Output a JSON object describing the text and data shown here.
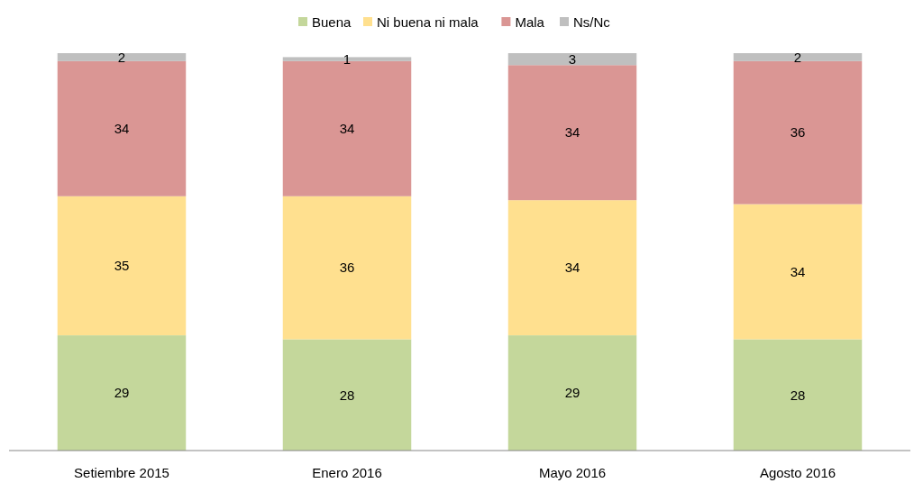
{
  "chart_data": {
    "type": "bar",
    "stacked": true,
    "categories": [
      "Setiembre 2015",
      "Enero 2016",
      "Mayo 2016",
      "Agosto 2016"
    ],
    "series": [
      {
        "name": "Buena",
        "color": "#c4d79b",
        "values": [
          29,
          28,
          29,
          28
        ]
      },
      {
        "name": "Ni buena ni mala",
        "color": "#ffe08f",
        "values": [
          35,
          36,
          34,
          34
        ]
      },
      {
        "name": "Mala",
        "color": "#da9694",
        "values": [
          34,
          34,
          34,
          36
        ]
      },
      {
        "name": "Ns/Nc",
        "color": "#bfbfbf",
        "values": [
          2,
          1,
          3,
          2
        ]
      }
    ],
    "data_labels": true,
    "legend": "top"
  }
}
